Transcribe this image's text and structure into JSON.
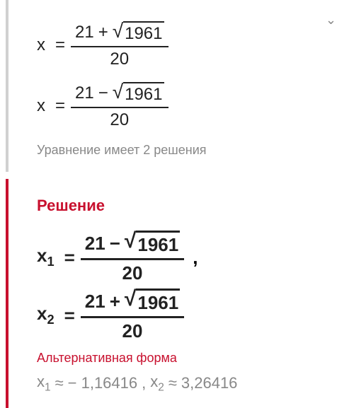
{
  "colors": {
    "accent": "#c8102e",
    "muted": "#888888",
    "text": "#222222",
    "border_left_muted": "#d0d0d0"
  },
  "chevron_glyph": "⌄",
  "section1": {
    "eq1": {
      "var": "x",
      "eq": "=",
      "num_a": "21",
      "op": "+",
      "radicand": "1961",
      "denom": "20"
    },
    "eq2": {
      "var": "x",
      "eq": "=",
      "num_a": "21",
      "op": "−",
      "radicand": "1961",
      "denom": "20"
    },
    "note": "Уравнение имеет 2 решения"
  },
  "section2": {
    "heading": "Решение",
    "pair": {
      "left": {
        "var": "x",
        "sub": "1",
        "eq": "=",
        "num_a": "21",
        "op": "−",
        "radicand": "1961",
        "denom": "20"
      },
      "comma": ",",
      "right": {
        "var": "x",
        "sub": "2",
        "eq": "=",
        "num_a": "21",
        "op": "+",
        "radicand": "1961",
        "denom": "20"
      }
    },
    "altform_label": "Альтернативная форма",
    "approx": {
      "x1_var": "x",
      "x1_sub": "1",
      "approx_sign": "≈",
      "x1_val": "− 1,16416",
      "comma": ",",
      "x2_var": "x",
      "x2_sub": "2",
      "x2_val": "3,26416"
    }
  }
}
